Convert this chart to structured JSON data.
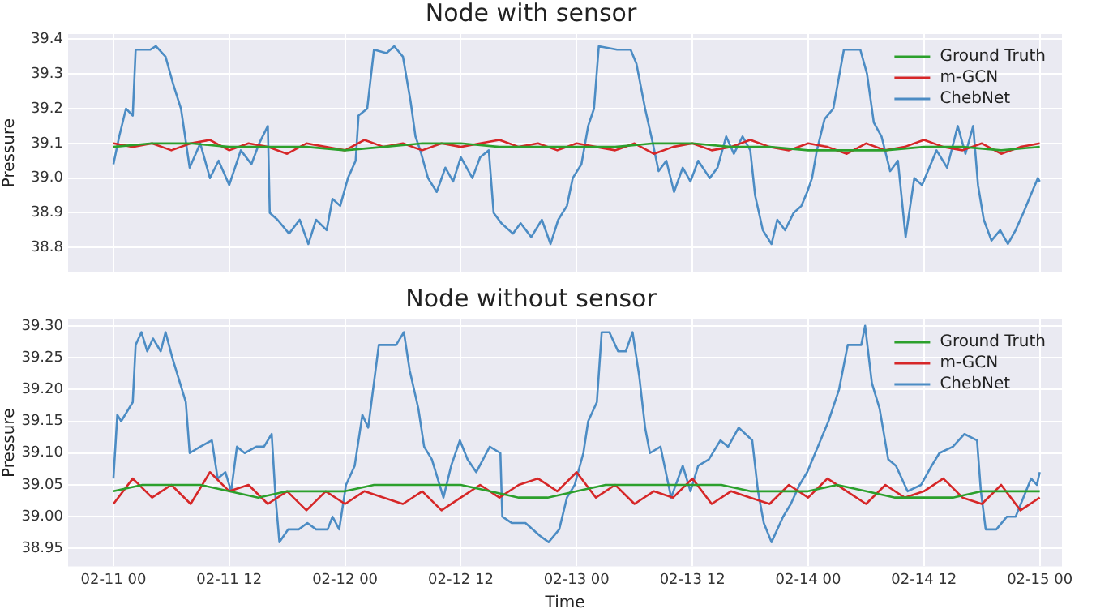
{
  "chart_data": [
    {
      "type": "line",
      "title": "Node with sensor",
      "ylabel": "Pressure",
      "xlim": [
        "--02-10T19:18",
        "--02-15T02:18"
      ],
      "ylim": [
        38.73,
        39.415
      ],
      "xticks": [
        "--02-11T00:00",
        "--02-11T12:00",
        "--02-12T00:00",
        "--02-12T12:00",
        "--02-13T00:00",
        "--02-13T12:00",
        "--02-14T00:00",
        "--02-14T12:00",
        "--02-15T00:00"
      ],
      "yticks": [
        {
          "value": 38.8,
          "label": "38.8"
        },
        {
          "value": 38.9,
          "label": "38.9"
        },
        {
          "value": 39,
          "label": "39.0"
        },
        {
          "value": 39.1,
          "label": "39.1"
        },
        {
          "value": 39.2,
          "label": "39.2"
        },
        {
          "value": 39.3,
          "label": "39.3"
        },
        {
          "value": 39.4,
          "label": "39.4"
        }
      ],
      "grid": true,
      "legend": "top right",
      "tick_labels": "y",
      "series": [
        {
          "name": "Ground Truth",
          "color": "#2ca02c",
          "x": [
            "--02-11T00:00",
            "--02-11T04:00",
            "--02-11T08:00",
            "--02-11T12:00",
            "--02-11T16:00",
            "--02-11T20:00",
            "--02-12T00:00",
            "--02-12T04:00",
            "--02-12T08:00",
            "--02-12T12:00",
            "--02-12T16:00",
            "--02-12T20:00",
            "--02-13T00:00",
            "--02-13T04:00",
            "--02-13T08:00",
            "--02-13T12:00",
            "--02-13T16:00",
            "--02-13T20:00",
            "--02-14T00:00",
            "--02-14T04:00",
            "--02-14T08:00",
            "--02-14T12:00",
            "--02-14T16:00",
            "--02-14T20:00",
            "--02-15T00:00"
          ],
          "values": [
            39.09,
            39.1,
            39.1,
            39.09,
            39.09,
            39.09,
            39.08,
            39.09,
            39.1,
            39.1,
            39.09,
            39.09,
            39.09,
            39.09,
            39.1,
            39.1,
            39.09,
            39.09,
            39.08,
            39.08,
            39.08,
            39.09,
            39.09,
            39.08,
            39.09
          ]
        },
        {
          "name": "m-GCN",
          "color": "#d62728",
          "x": [
            "--02-11T00:00",
            "--02-11T02:00",
            "--02-11T04:00",
            "--02-11T06:00",
            "--02-11T08:00",
            "--02-11T10:00",
            "--02-11T12:00",
            "--02-11T14:00",
            "--02-11T16:00",
            "--02-11T18:00",
            "--02-11T20:00",
            "--02-11T22:00",
            "--02-12T00:00",
            "--02-12T02:00",
            "--02-12T04:00",
            "--02-12T06:00",
            "--02-12T08:00",
            "--02-12T10:00",
            "--02-12T12:00",
            "--02-12T14:00",
            "--02-12T16:00",
            "--02-12T18:00",
            "--02-12T20:00",
            "--02-12T22:00",
            "--02-13T00:00",
            "--02-13T02:00",
            "--02-13T04:00",
            "--02-13T06:00",
            "--02-13T08:00",
            "--02-13T10:00",
            "--02-13T12:00",
            "--02-13T14:00",
            "--02-13T16:00",
            "--02-13T18:00",
            "--02-13T20:00",
            "--02-13T22:00",
            "--02-14T00:00",
            "--02-14T02:00",
            "--02-14T04:00",
            "--02-14T06:00",
            "--02-14T08:00",
            "--02-14T10:00",
            "--02-14T12:00",
            "--02-14T14:00",
            "--02-14T16:00",
            "--02-14T18:00",
            "--02-14T20:00",
            "--02-14T22:00",
            "--02-15T00:00"
          ],
          "values": [
            39.1,
            39.09,
            39.1,
            39.08,
            39.1,
            39.11,
            39.08,
            39.1,
            39.09,
            39.07,
            39.1,
            39.09,
            39.08,
            39.11,
            39.09,
            39.1,
            39.08,
            39.1,
            39.09,
            39.1,
            39.11,
            39.09,
            39.1,
            39.08,
            39.1,
            39.09,
            39.08,
            39.1,
            39.07,
            39.09,
            39.1,
            39.08,
            39.09,
            39.11,
            39.09,
            39.08,
            39.1,
            39.09,
            39.07,
            39.1,
            39.08,
            39.09,
            39.11,
            39.09,
            39.08,
            39.1,
            39.07,
            39.09,
            39.1
          ]
        },
        {
          "name": "ChebNet",
          "color": "#4c8cc4",
          "x": [
            "--02-11T00:00",
            "--02-11T00:36",
            "--02-11T01:18",
            "--02-11T02:00",
            "--02-11T02:18",
            "--02-11T03:48",
            "--02-11T04:24",
            "--02-11T05:24",
            "--02-11T06:12",
            "--02-11T07:00",
            "--02-11T07:54",
            "--02-11T09:00",
            "--02-11T10:00",
            "--02-11T10:54",
            "--02-11T12:00",
            "--02-11T13:12",
            "--02-11T14:18",
            "--02-11T15:06",
            "--02-11T16:00",
            "--02-11T16:12",
            "--02-11T17:00",
            "--02-11T18:12",
            "--02-11T19:18",
            "--02-11T20:12",
            "--02-11T21:00",
            "--02-11T22:06",
            "--02-11T22:42",
            "--02-11T23:30",
            "--02-12T00:18",
            "--02-12T01:06",
            "--02-12T01:24",
            "--02-12T02:18",
            "--02-12T03:00",
            "--02-12T04:18",
            "--02-12T05:06",
            "--02-12T06:00",
            "--02-12T06:48",
            "--02-12T07:18",
            "--02-12T07:48",
            "--02-12T08:36",
            "--02-12T09:30",
            "--02-12T10:24",
            "--02-12T11:12",
            "--02-12T12:00",
            "--02-12T13:12",
            "--02-12T14:00",
            "--02-12T14:54",
            "--02-12T15:24",
            "--02-12T16:12",
            "--02-12T17:24",
            "--02-12T18:12",
            "--02-12T19:18",
            "--02-12T20:24",
            "--02-12T21:18",
            "--02-12T22:06",
            "--02-12T23:00",
            "--02-12T23:36",
            "--02-13T00:30",
            "--02-13T01:12",
            "--02-13T01:48",
            "--02-13T02:18",
            "--02-13T04:12",
            "--02-13T05:36",
            "--02-13T06:12",
            "--02-13T07:06",
            "--02-13T07:54",
            "--02-13T08:30",
            "--02-13T09:18",
            "--02-13T10:06",
            "--02-13T11:00",
            "--02-13T11:48",
            "--02-13T12:36",
            "--02-13T13:48",
            "--02-13T14:36",
            "--02-13T15:30",
            "--02-13T16:18",
            "--02-13T17:12",
            "--02-13T18:00",
            "--02-13T18:30",
            "--02-13T19:18",
            "--02-13T20:12",
            "--02-13T20:48",
            "--02-13T21:36",
            "--02-13T22:30",
            "--02-13T23:18",
            "--02-13T23:54",
            "--02-14T00:24",
            "--02-14T00:54",
            "--02-14T01:42",
            "--02-14T02:36",
            "--02-14T03:42",
            "--02-14T05:24",
            "--02-14T06:06",
            "--02-14T06:48",
            "--02-14T07:36",
            "--02-14T08:30",
            "--02-14T09:18",
            "--02-14T10:06",
            "--02-14T11:00",
            "--02-14T11:48",
            "--02-14T13:18",
            "--02-14T14:24",
            "--02-14T15:30",
            "--02-14T16:18",
            "--02-14T17:06",
            "--02-14T17:36",
            "--02-14T18:12",
            "--02-14T19:00",
            "--02-14T19:54",
            "--02-14T20:42",
            "--02-14T21:30",
            "--02-14T22:18",
            "--02-14T23:12",
            "--02-14T23:48",
            "--02-15T00:00"
          ],
          "values": [
            39.04,
            39.12,
            39.2,
            39.18,
            39.37,
            39.37,
            39.38,
            39.35,
            39.27,
            39.2,
            39.03,
            39.1,
            39.0,
            39.05,
            38.98,
            39.08,
            39.04,
            39.1,
            39.15,
            38.9,
            38.88,
            38.84,
            38.88,
            38.81,
            38.88,
            38.85,
            38.94,
            38.92,
            39.0,
            39.05,
            39.18,
            39.2,
            39.37,
            39.36,
            39.38,
            39.35,
            39.22,
            39.12,
            39.08,
            39.0,
            38.96,
            39.03,
            38.99,
            39.06,
            39.0,
            39.06,
            39.08,
            38.9,
            38.87,
            38.84,
            38.87,
            38.83,
            38.88,
            38.81,
            38.88,
            38.92,
            39.0,
            39.04,
            39.15,
            39.2,
            39.38,
            39.37,
            39.37,
            39.33,
            39.2,
            39.1,
            39.02,
            39.05,
            38.96,
            39.03,
            38.99,
            39.05,
            39.0,
            39.03,
            39.12,
            39.07,
            39.12,
            39.08,
            38.95,
            38.85,
            38.81,
            38.88,
            38.85,
            38.9,
            38.92,
            38.96,
            39.0,
            39.08,
            39.17,
            39.2,
            39.37,
            39.37,
            39.3,
            39.16,
            39.12,
            39.02,
            39.05,
            38.83,
            39.0,
            38.98,
            39.08,
            39.03,
            39.15,
            39.07,
            39.15,
            38.98,
            38.88,
            38.82,
            38.85,
            38.81,
            38.85,
            38.9,
            38.96,
            39.0,
            38.99
          ]
        }
      ]
    },
    {
      "type": "line",
      "title": "Node without sensor",
      "xlabel": "Time",
      "ylabel": "Pressure",
      "xlim": [
        "--02-10T19:18",
        "--02-15T02:18"
      ],
      "ylim": [
        38.922,
        39.31
      ],
      "xticks": [
        {
          "value": "--02-11T00:00",
          "label": "02-11 00"
        },
        {
          "value": "--02-11T12:00",
          "label": "02-11 12"
        },
        {
          "value": "--02-12T00:00",
          "label": "02-12 00"
        },
        {
          "value": "--02-12T12:00",
          "label": "02-12 12"
        },
        {
          "value": "--02-13T00:00",
          "label": "02-13 00"
        },
        {
          "value": "--02-13T12:00",
          "label": "02-13 12"
        },
        {
          "value": "--02-14T00:00",
          "label": "02-14 00"
        },
        {
          "value": "--02-14T12:00",
          "label": "02-14 12"
        },
        {
          "value": "--02-15T00:00",
          "label": "02-15 00"
        }
      ],
      "yticks": [
        {
          "value": 38.95,
          "label": "38.95"
        },
        {
          "value": 39,
          "label": "39.00"
        },
        {
          "value": 39.05,
          "label": "39.05"
        },
        {
          "value": 39.1,
          "label": "39.10"
        },
        {
          "value": 39.15,
          "label": "39.15"
        },
        {
          "value": 39.2,
          "label": "39.20"
        },
        {
          "value": 39.25,
          "label": "39.25"
        },
        {
          "value": 39.3,
          "label": "39.30"
        }
      ],
      "grid": true,
      "legend": "top right",
      "series": [
        {
          "name": "Ground Truth",
          "color": "#2ca02c",
          "x": [
            "--02-11T00:00",
            "--02-11T03:00",
            "--02-11T06:00",
            "--02-11T09:00",
            "--02-11T12:00",
            "--02-11T15:00",
            "--02-11T18:00",
            "--02-11T21:00",
            "--02-12T00:00",
            "--02-12T03:00",
            "--02-12T06:00",
            "--02-12T09:00",
            "--02-12T12:00",
            "--02-12T15:00",
            "--02-12T18:00",
            "--02-12T21:00",
            "--02-13T00:00",
            "--02-13T03:00",
            "--02-13T06:00",
            "--02-13T09:00",
            "--02-13T12:00",
            "--02-13T15:00",
            "--02-13T18:00",
            "--02-13T21:00",
            "--02-14T00:00",
            "--02-14T03:00",
            "--02-14T06:00",
            "--02-14T09:00",
            "--02-14T12:00",
            "--02-14T15:00",
            "--02-14T18:00",
            "--02-14T21:00",
            "--02-15T00:00"
          ],
          "values": [
            39.04,
            39.05,
            39.05,
            39.05,
            39.04,
            39.03,
            39.04,
            39.04,
            39.04,
            39.05,
            39.05,
            39.05,
            39.05,
            39.04,
            39.03,
            39.03,
            39.04,
            39.05,
            39.05,
            39.05,
            39.05,
            39.05,
            39.04,
            39.04,
            39.04,
            39.05,
            39.04,
            39.03,
            39.03,
            39.03,
            39.04,
            39.04,
            39.04
          ]
        },
        {
          "name": "m-GCN",
          "color": "#d62728",
          "x": [
            "--02-11T00:00",
            "--02-11T02:00",
            "--02-11T04:00",
            "--02-11T06:00",
            "--02-11T08:00",
            "--02-11T10:00",
            "--02-11T12:00",
            "--02-11T14:00",
            "--02-11T16:00",
            "--02-11T18:00",
            "--02-11T20:00",
            "--02-11T22:00",
            "--02-12T00:00",
            "--02-12T02:00",
            "--02-12T04:00",
            "--02-12T06:00",
            "--02-12T08:00",
            "--02-12T10:00",
            "--02-12T12:00",
            "--02-12T14:00",
            "--02-12T16:00",
            "--02-12T18:00",
            "--02-12T20:00",
            "--02-12T22:00",
            "--02-13T00:00",
            "--02-13T02:00",
            "--02-13T04:00",
            "--02-13T06:00",
            "--02-13T08:00",
            "--02-13T10:00",
            "--02-13T12:00",
            "--02-13T14:00",
            "--02-13T16:00",
            "--02-13T18:00",
            "--02-13T20:00",
            "--02-13T22:00",
            "--02-14T00:00",
            "--02-14T02:00",
            "--02-14T04:00",
            "--02-14T06:00",
            "--02-14T08:00",
            "--02-14T10:00",
            "--02-14T12:00",
            "--02-14T14:00",
            "--02-14T16:00",
            "--02-14T18:00",
            "--02-14T20:00",
            "--02-14T22:00",
            "--02-15T00:00"
          ],
          "values": [
            39.02,
            39.06,
            39.03,
            39.05,
            39.02,
            39.07,
            39.04,
            39.05,
            39.02,
            39.04,
            39.01,
            39.04,
            39.02,
            39.04,
            39.03,
            39.02,
            39.04,
            39.01,
            39.03,
            39.05,
            39.03,
            39.05,
            39.06,
            39.04,
            39.07,
            39.03,
            39.05,
            39.02,
            39.04,
            39.03,
            39.06,
            39.02,
            39.04,
            39.03,
            39.02,
            39.05,
            39.03,
            39.06,
            39.04,
            39.02,
            39.05,
            39.03,
            39.04,
            39.06,
            39.03,
            39.02,
            39.05,
            39.01,
            39.03
          ]
        },
        {
          "name": "ChebNet",
          "color": "#4c8cc4",
          "x": [
            "--02-11T00:00",
            "--02-11T00:24",
            "--02-11T00:48",
            "--02-11T02:00",
            "--02-11T02:18",
            "--02-11T02:54",
            "--02-11T03:30",
            "--02-11T04:06",
            "--02-11T04:54",
            "--02-11T05:24",
            "--02-11T06:06",
            "--02-11T06:42",
            "--02-11T07:30",
            "--02-11T07:54",
            "--02-11T09:00",
            "--02-11T10:12",
            "--02-11T10:48",
            "--02-11T11:36",
            "--02-11T12:12",
            "--02-11T12:48",
            "--02-11T13:36",
            "--02-11T14:48",
            "--02-11T15:36",
            "--02-11T16:24",
            "--02-11T16:48",
            "--02-11T17:12",
            "--02-11T18:06",
            "--02-11T19:12",
            "--02-11T20:06",
            "--02-11T21:00",
            "--02-11T22:12",
            "--02-11T22:42",
            "--02-11T23:24",
            "--02-12T00:06",
            "--02-12T01:00",
            "--02-12T01:48",
            "--02-12T02:24",
            "--02-12T03:30",
            "--02-12T04:24",
            "--02-12T05:18",
            "--02-12T06:06",
            "--02-12T06:42",
            "--02-12T07:36",
            "--02-12T08:12",
            "--02-12T09:00",
            "--02-12T10:12",
            "--02-12T11:00",
            "--02-12T11:54",
            "--02-12T12:42",
            "--02-12T13:36",
            "--02-12T15:00",
            "--02-12T16:06",
            "--02-12T16:18",
            "--02-12T17:18",
            "--02-12T18:42",
            "--02-12T20:12",
            "--02-12T21:06",
            "--02-12T22:12",
            "--02-12T23:00",
            "--02-12T23:48",
            "--02-13T00:42",
            "--02-13T01:12",
            "--02-13T02:06",
            "--02-13T02:36",
            "--02-13T03:24",
            "--02-13T04:18",
            "--02-13T05:06",
            "--02-13T05:48",
            "--02-13T06:30",
            "--02-13T07:06",
            "--02-13T07:36",
            "--02-13T08:42",
            "--02-13T09:48",
            "--02-13T11:00",
            "--02-13T11:48",
            "--02-13T12:36",
            "--02-13T13:42",
            "--02-13T14:54",
            "--02-13T15:42",
            "--02-13T16:48",
            "--02-13T18:12",
            "--02-13T18:48",
            "--02-13T19:24",
            "--02-13T20:12",
            "--02-13T21:24",
            "--02-13T22:12",
            "--02-13T23:06",
            "--02-13T23:54",
            "--02-14T01:00",
            "--02-14T02:06",
            "--02-14T03:12",
            "--02-14T04:06",
            "--02-14T05:30",
            "--02-14T05:54",
            "--02-14T06:36",
            "--02-14T07:24",
            "--02-14T08:18",
            "--02-14T09:06",
            "--02-14T10:18",
            "--02-14T11:42",
            "--02-14T12:48",
            "--02-14T13:36",
            "--02-14T15:00",
            "--02-14T16:12",
            "--02-14T17:30",
            "--02-14T17:54",
            "--02-14T18:24",
            "--02-14T19:30",
            "--02-14T20:36",
            "--02-14T21:30",
            "--02-14T22:18",
            "--02-14T23:06",
            "--02-14T23:42",
            "--02-15T00:00"
          ],
          "values": [
            39.06,
            39.16,
            39.15,
            39.18,
            39.27,
            39.29,
            39.26,
            39.28,
            39.26,
            39.29,
            39.25,
            39.22,
            39.18,
            39.1,
            39.11,
            39.12,
            39.06,
            39.07,
            39.04,
            39.11,
            39.1,
            39.11,
            39.11,
            39.13,
            39.03,
            38.96,
            38.98,
            38.98,
            38.99,
            38.98,
            38.98,
            39.0,
            38.98,
            39.05,
            39.08,
            39.16,
            39.14,
            39.27,
            39.27,
            39.27,
            39.29,
            39.23,
            39.17,
            39.11,
            39.09,
            39.03,
            39.08,
            39.12,
            39.09,
            39.07,
            39.11,
            39.1,
            39.0,
            38.99,
            38.99,
            38.97,
            38.96,
            38.98,
            39.03,
            39.05,
            39.1,
            39.15,
            39.18,
            39.29,
            39.29,
            39.26,
            39.26,
            39.29,
            39.22,
            39.14,
            39.1,
            39.11,
            39.03,
            39.08,
            39.04,
            39.08,
            39.09,
            39.12,
            39.11,
            39.14,
            39.12,
            39.04,
            38.99,
            38.96,
            39.0,
            39.02,
            39.05,
            39.07,
            39.11,
            39.15,
            39.2,
            39.27,
            39.27,
            39.3,
            39.21,
            39.17,
            39.09,
            39.08,
            39.04,
            39.05,
            39.08,
            39.1,
            39.11,
            39.13,
            39.12,
            39.04,
            38.98,
            38.98,
            39.0,
            39.0,
            39.03,
            39.06,
            39.05,
            39.07
          ]
        }
      ]
    }
  ]
}
